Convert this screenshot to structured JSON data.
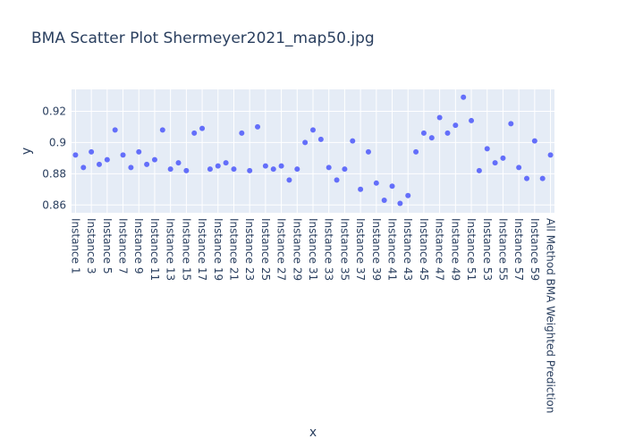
{
  "chart_data": {
    "type": "scatter",
    "title": "BMA Scatter Plot Shermeyer2021_map50.jpg",
    "xlabel": "x",
    "ylabel": "y",
    "categories": [
      "Instance 1",
      "Instance 2",
      "Instance 3",
      "Instance 4",
      "Instance 5",
      "Instance 6",
      "Instance 7",
      "Instance 8",
      "Instance 9",
      "Instance 10",
      "Instance 11",
      "Instance 12",
      "Instance 13",
      "Instance 14",
      "Instance 15",
      "Instance 16",
      "Instance 17",
      "Instance 18",
      "Instance 19",
      "Instance 20",
      "Instance 21",
      "Instance 22",
      "Instance 23",
      "Instance 24",
      "Instance 25",
      "Instance 26",
      "Instance 27",
      "Instance 28",
      "Instance 29",
      "Instance 30",
      "Instance 31",
      "Instance 32",
      "Instance 33",
      "Instance 34",
      "Instance 35",
      "Instance 36",
      "Instance 37",
      "Instance 38",
      "Instance 39",
      "Instance 40",
      "Instance 41",
      "Instance 42",
      "Instance 43",
      "Instance 44",
      "Instance 45",
      "Instance 46",
      "Instance 47",
      "Instance 48",
      "Instance 49",
      "Instance 50",
      "Instance 51",
      "Instance 52",
      "Instance 53",
      "Instance 54",
      "Instance 55",
      "Instance 56",
      "Instance 57",
      "Instance 58",
      "Instance 59",
      "Instance 60",
      "All Method BMA Weighted Prediction"
    ],
    "visible_tick_labels": [
      "Instance 1",
      "Instance 3",
      "Instance 5",
      "Instance 7",
      "Instance 9",
      "Instance 11",
      "Instance 13",
      "Instance 15",
      "Instance 17",
      "Instance 19",
      "Instance 21",
      "Instance 23",
      "Instance 25",
      "Instance 27",
      "Instance 29",
      "Instance 31",
      "Instance 33",
      "Instance 35",
      "Instance 37",
      "Instance 39",
      "Instance 41",
      "Instance 43",
      "Instance 45",
      "Instance 47",
      "Instance 49",
      "Instance 51",
      "Instance 53",
      "Instance 55",
      "Instance 57",
      "Instance 59",
      "All Method BMA Weighted Prediction"
    ],
    "values": [
      0.892,
      0.884,
      0.894,
      0.886,
      0.889,
      0.908,
      0.892,
      0.884,
      0.894,
      0.886,
      0.889,
      0.908,
      0.883,
      0.887,
      0.882,
      0.906,
      0.909,
      0.883,
      0.885,
      0.887,
      0.883,
      0.906,
      0.882,
      0.91,
      0.885,
      0.883,
      0.885,
      0.876,
      0.883,
      0.9,
      0.908,
      0.902,
      0.884,
      0.876,
      0.883,
      0.901,
      0.87,
      0.894,
      0.874,
      0.863,
      0.872,
      0.861,
      0.866,
      0.894,
      0.906,
      0.903,
      0.916,
      0.906,
      0.911,
      0.929,
      0.914,
      0.882,
      0.896,
      0.887,
      0.89,
      0.912,
      0.884,
      0.877,
      0.901,
      0.877,
      0.892
    ],
    "y_ticks": [
      "0.86",
      "0.88",
      "0.9",
      "0.92"
    ],
    "y_tick_values": [
      0.86,
      0.88,
      0.9,
      0.92
    ],
    "ylim": [
      0.855,
      0.934
    ],
    "grid": true,
    "colors": {
      "marker": "#636efa",
      "plot_bg": "#e5ecf6",
      "grid": "#ffffff",
      "text": "#2a3f5f"
    }
  }
}
